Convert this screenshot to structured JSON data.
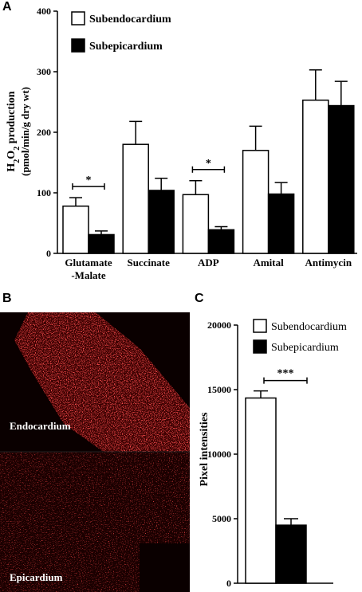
{
  "panel_labels": {
    "a": "A",
    "b": "B",
    "c": "C"
  },
  "chart_data": [
    {
      "type": "bar",
      "panel": "A",
      "categories": [
        "Glutamate\n-Malate",
        "Succinate",
        "ADP",
        "Amital",
        "Antimycin"
      ],
      "series": [
        {
          "name": "Subendocardium",
          "color": "#ffffff",
          "values": [
            78,
            180,
            97,
            170,
            253
          ],
          "errors": [
            14,
            38,
            23,
            40,
            50
          ]
        },
        {
          "name": "Subepicardium",
          "color": "#000000",
          "values": [
            31,
            104,
            39,
            98,
            244
          ],
          "errors": [
            6,
            20,
            5,
            19,
            40
          ]
        }
      ],
      "ylabel_main": "H2O2 production",
      "ylabel_sub": "(pmol/min/g dry wt)",
      "ylim": [
        0,
        400
      ],
      "yticks": [
        0,
        100,
        200,
        300,
        400
      ],
      "significance": [
        {
          "category_index": 0,
          "label": "*"
        },
        {
          "category_index": 2,
          "label": "*"
        }
      ],
      "legend_position": "top-left"
    },
    {
      "type": "bar",
      "panel": "C",
      "categories": [
        ""
      ],
      "series": [
        {
          "name": "Subendocardium",
          "color": "#ffffff",
          "values": [
            14350
          ],
          "errors": [
            550
          ]
        },
        {
          "name": "Subepicardium",
          "color": "#000000",
          "values": [
            4500
          ],
          "errors": [
            500
          ]
        }
      ],
      "ylabel": "Pixel intensities",
      "ylim": [
        0,
        20000
      ],
      "yticks": [
        0,
        5000,
        10000,
        15000,
        20000
      ],
      "significance": [
        {
          "label": "***"
        }
      ],
      "legend_position": "top-right"
    }
  ],
  "micrograph": {
    "top_label": "Endocardium",
    "bottom_label": "Epicardium",
    "stain_color": "#ff1a1a"
  }
}
